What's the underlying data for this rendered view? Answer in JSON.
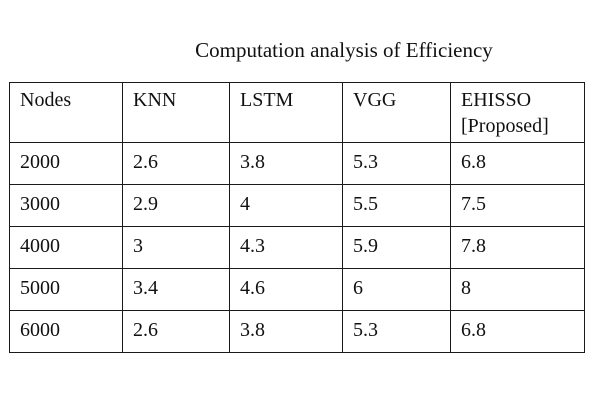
{
  "caption": "Computation analysis of Efficiency",
  "table": {
    "headers": [
      "Nodes",
      "KNN",
      "LSTM",
      "VGG",
      "EHISSO\n[Proposed]"
    ],
    "rows": [
      [
        "2000",
        "2.6",
        "3.8",
        "5.3",
        "6.8"
      ],
      [
        "3000",
        "2.9",
        "4",
        "5.5",
        "7.5"
      ],
      [
        "4000",
        "3",
        "4.3",
        "5.9",
        "7.8"
      ],
      [
        "5000",
        "3.4",
        "4.6",
        "6",
        "8"
      ],
      [
        "6000",
        "2.6",
        "3.8",
        "5.3",
        "6.8"
      ]
    ]
  }
}
